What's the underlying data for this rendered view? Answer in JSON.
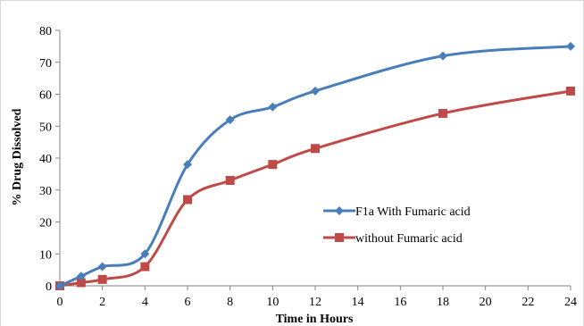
{
  "chart_data": {
    "type": "line",
    "title": "",
    "xlabel": "Time in Hours",
    "ylabel": "% Drug Dissolved",
    "xlim": [
      0,
      24
    ],
    "ylim": [
      0,
      80
    ],
    "x_ticks": [
      0,
      2,
      4,
      6,
      8,
      10,
      12,
      14,
      16,
      18,
      20,
      22,
      24
    ],
    "y_ticks": [
      0,
      10,
      20,
      30,
      40,
      50,
      60,
      70,
      80
    ],
    "grid": false,
    "legend_position": "right-middle",
    "series": [
      {
        "name": "F1a With Fumaric acid",
        "color": "#4a7ebb",
        "marker": "diamond",
        "x": [
          0,
          1,
          2,
          4,
          6,
          8,
          10,
          12,
          18,
          24
        ],
        "y": [
          0,
          3,
          6,
          10,
          38,
          52,
          56,
          61,
          72,
          75
        ]
      },
      {
        "name": "without Fumaric acid",
        "color": "#be4b48",
        "marker": "square",
        "x": [
          0,
          1,
          2,
          4,
          6,
          8,
          10,
          12,
          18,
          24
        ],
        "y": [
          0,
          1,
          2,
          6,
          27,
          33,
          38,
          43,
          54,
          61
        ]
      }
    ]
  }
}
